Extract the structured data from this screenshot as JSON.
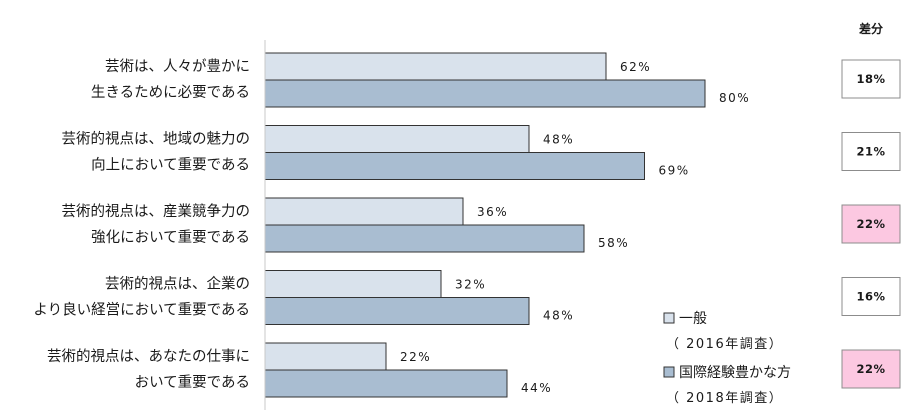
{
  "chart_data": {
    "type": "bar",
    "orientation": "horizontal",
    "categories": [
      [
        "芸術は、人々が豊かに",
        "生きるために必要である"
      ],
      [
        "芸術的視点は、地域の魅力の",
        "向上において重要である"
      ],
      [
        "芸術的視点は、産業競争力の",
        "強化において重要である"
      ],
      [
        "芸術的視点は、企業の",
        "より良い経営において重要である"
      ],
      [
        "芸術的視点は、あなたの仕事に",
        "おいて重要である"
      ]
    ],
    "series": [
      {
        "name": "一般",
        "name_sub": "（ 2016年調査）",
        "color": "#d9e2ec",
        "values": [
          62,
          48,
          36,
          32,
          22
        ]
      },
      {
        "name": "国際経験豊かな方",
        "name_sub": "（ 2018年調査）",
        "color": "#a9bdd1",
        "values": [
          80,
          69,
          58,
          48,
          44
        ]
      }
    ],
    "value_suffix": "%",
    "xlim": [
      0,
      100
    ],
    "legend_position": "bottom-right",
    "difference": {
      "title": "差分",
      "values": [
        "18%",
        "21%",
        "22%",
        "16%",
        "22%"
      ],
      "highlight": [
        false,
        false,
        true,
        false,
        true
      ],
      "highlight_color": "#fcc8e1"
    }
  }
}
